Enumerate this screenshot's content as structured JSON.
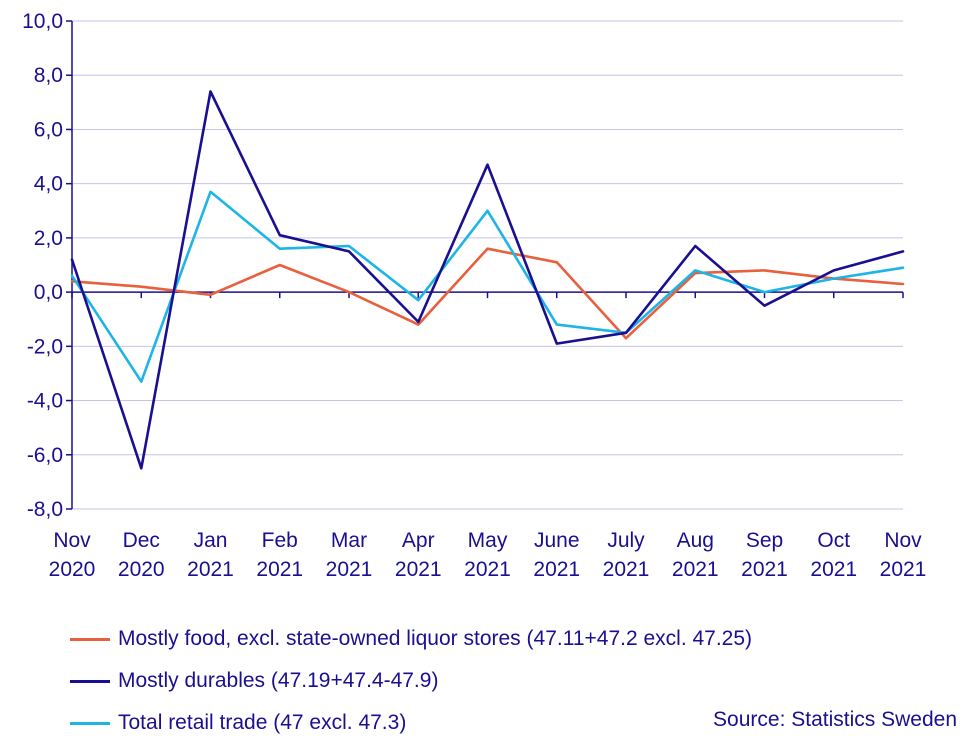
{
  "chart_data": {
    "type": "line",
    "categories": [
      [
        "Nov",
        "2020"
      ],
      [
        "Dec",
        "2020"
      ],
      [
        "Jan",
        "2021"
      ],
      [
        "Feb",
        "2021"
      ],
      [
        "Mar",
        "2021"
      ],
      [
        "Apr",
        "2021"
      ],
      [
        "May",
        "2021"
      ],
      [
        "June",
        "2021"
      ],
      [
        "July",
        "2021"
      ],
      [
        "Aug",
        "2021"
      ],
      [
        "Sep",
        "2021"
      ],
      [
        "Oct",
        "2021"
      ],
      [
        "Nov",
        "2021"
      ]
    ],
    "ylim": [
      -8,
      10
    ],
    "yticks": [
      "10,0",
      "8,0",
      "6,0",
      "4,0",
      "2,0",
      "0,0",
      "-2,0",
      "-4,0",
      "-6,0",
      "-8,0"
    ],
    "grid": true,
    "legend_position": "bottom-left",
    "series": [
      {
        "name": "Mostly food, excl. state-owned liquor stores (47.11+47.2 excl. 47.25)",
        "color": "#e8603c",
        "values": [
          0.4,
          0.2,
          -0.1,
          1.0,
          0.0,
          -1.2,
          1.6,
          1.1,
          -1.7,
          0.7,
          0.8,
          0.5,
          0.3
        ]
      },
      {
        "name": "Mostly durables (47.19+47.4-47.9)",
        "color": "#1a0f91",
        "values": [
          1.2,
          -6.5,
          7.4,
          2.1,
          1.5,
          -1.1,
          4.7,
          -1.9,
          -1.5,
          1.7,
          -0.5,
          0.8,
          1.5
        ]
      },
      {
        "name": "Total retail trade (47 excl. 47.3)",
        "color": "#1eb4e6",
        "values": [
          0.6,
          -3.3,
          3.7,
          1.6,
          1.7,
          -0.3,
          3.0,
          -1.2,
          -1.5,
          0.8,
          0.0,
          0.5,
          0.9
        ]
      }
    ]
  },
  "source": "Source: Statistics Sweden"
}
